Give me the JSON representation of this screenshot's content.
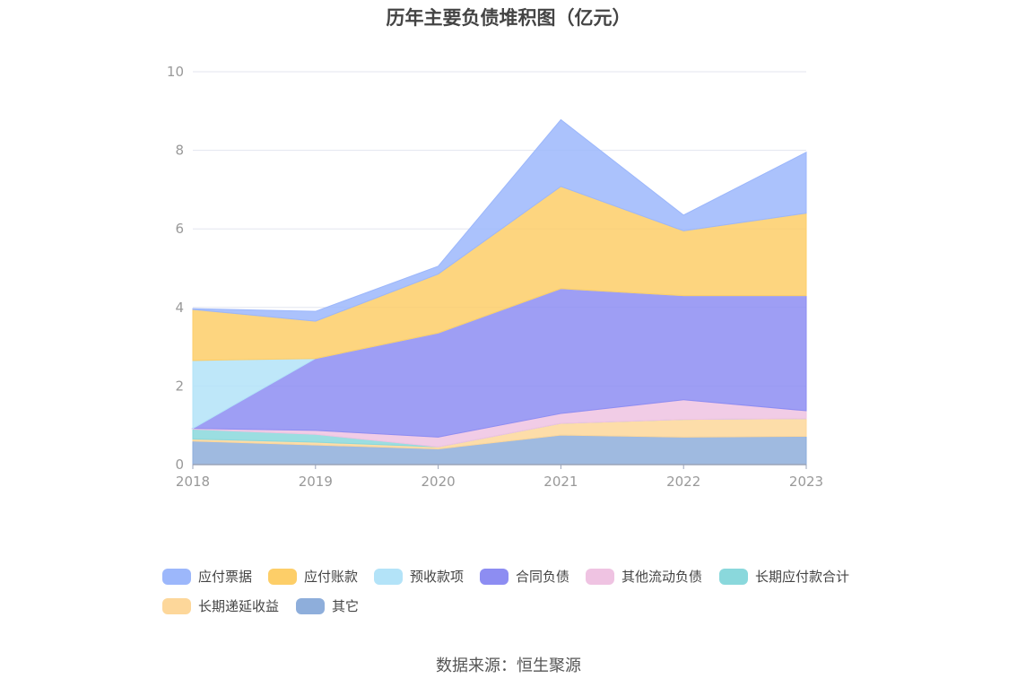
{
  "chart_data": {
    "type": "area",
    "stacked": true,
    "title": "历年主要负债堆积图（亿元）",
    "xlabel": "",
    "ylabel": "",
    "x": [
      "2018",
      "2019",
      "2020",
      "2021",
      "2022",
      "2023"
    ],
    "ylim": [
      0,
      10
    ],
    "yticks": [
      "0",
      "2",
      "4",
      "6",
      "8",
      "10"
    ],
    "grid": true,
    "legend_position": "bottom",
    "series": [
      {
        "name": "其它",
        "color": "#8eaedb",
        "values": [
          0.6,
          0.5,
          0.4,
          0.75,
          0.7,
          0.72
        ]
      },
      {
        "name": "长期递延收益",
        "color": "#fdd79a",
        "values": [
          0.05,
          0.07,
          0.05,
          0.3,
          0.45,
          0.45
        ]
      },
      {
        "name": "长期应付款合计",
        "color": "#8ad8dc",
        "values": [
          0.25,
          0.2,
          0.0,
          0.0,
          0.0,
          0.0
        ]
      },
      {
        "name": "其他流动负债",
        "color": "#efc3e2",
        "values": [
          0.02,
          0.1,
          0.25,
          0.25,
          0.5,
          0.2
        ]
      },
      {
        "name": "合同负债",
        "color": "#8d8df2",
        "values": [
          0.0,
          1.83,
          2.65,
          3.18,
          2.65,
          2.93
        ]
      },
      {
        "name": "预收款项",
        "color": "#b3e3f8",
        "values": [
          1.73,
          0.0,
          0.0,
          0.0,
          0.0,
          0.0
        ]
      },
      {
        "name": "应付账款",
        "color": "#fdce68",
        "values": [
          1.3,
          0.95,
          1.5,
          2.6,
          1.65,
          2.1
        ]
      },
      {
        "name": "应付票据",
        "color": "#9cb7fb",
        "values": [
          0.02,
          0.25,
          0.2,
          1.7,
          0.4,
          1.55
        ]
      }
    ],
    "legend_order": [
      "应付票据",
      "应付账款",
      "预收款项",
      "合同负债",
      "其他流动负债",
      "长期应付款合计",
      "长期递延收益",
      "其它"
    ]
  },
  "source": "数据来源：恒生聚源"
}
